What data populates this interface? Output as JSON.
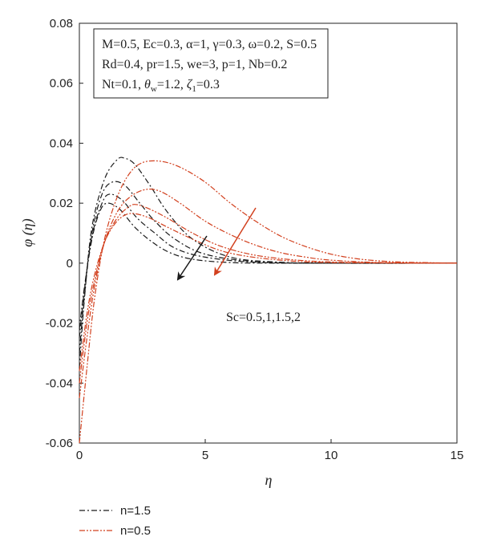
{
  "chart_data": {
    "type": "line",
    "xlabel": "η",
    "ylabel": "φ (η)",
    "xlim": [
      0,
      15
    ],
    "ylim": [
      -0.06,
      0.08
    ],
    "xticks": [
      "0",
      "5",
      "10",
      "15"
    ],
    "yticks": [
      "-0.06",
      "-0.04",
      "-0.02",
      "0",
      "0.02",
      "0.04",
      "0.06",
      "0.08"
    ],
    "grid": false,
    "legend_position": "below-left",
    "colors": {
      "black": "#1a1a1a",
      "red": "#d2401e",
      "frame": "#222222"
    },
    "parameters": [
      "M=0.5, Ec=0.3, α=1, γ=0.3, ω=0.2, S=0.5",
      "Rd=0.4, pr=1.5, we=3, p=1, Nb=0.2",
      "Nt=0.1, θ_w=1.2, ζ_1=0.3"
    ],
    "annotation": "Sc=0.5,1,1.5,2",
    "series": [
      {
        "name": "n=1.5",
        "dash": "dashdot",
        "color": "#1a1a1a",
        "curves": [
          {
            "Sc": 0.5,
            "x": [
              0,
              0.2,
              0.5,
              1.0,
              1.5,
              1.8,
              2.2,
              2.8,
              3.5,
              4.5,
              6.0,
              8.0,
              10.0,
              15.0
            ],
            "y": [
              -0.035,
              -0.012,
              0.012,
              0.028,
              0.0345,
              0.035,
              0.033,
              0.026,
              0.017,
              0.008,
              0.002,
              0.0003,
              0.0,
              0.0
            ]
          },
          {
            "Sc": 1,
            "x": [
              0,
              0.2,
              0.5,
              0.9,
              1.3,
              1.8,
              2.4,
              3.0,
              3.8,
              5.0,
              7.0,
              10.0,
              15.0
            ],
            "y": [
              -0.03,
              -0.011,
              0.01,
              0.023,
              0.027,
              0.026,
              0.02,
              0.014,
              0.008,
              0.003,
              0.0005,
              0.0,
              0.0
            ]
          },
          {
            "Sc": 1.5,
            "x": [
              0,
              0.2,
              0.5,
              0.9,
              1.2,
              1.7,
              2.3,
              3.0,
              3.8,
              5.0,
              7.0,
              10.0,
              15.0
            ],
            "y": [
              -0.025,
              -0.009,
              0.009,
              0.02,
              0.023,
              0.021,
              0.015,
              0.01,
              0.005,
              0.002,
              0.0003,
              0.0,
              0.0
            ]
          },
          {
            "Sc": 2,
            "x": [
              0,
              0.2,
              0.5,
              0.8,
              1.1,
              1.6,
              2.2,
              2.9,
              3.6,
              4.5,
              6.0,
              8.0,
              15.0
            ],
            "y": [
              -0.022,
              -0.008,
              0.008,
              0.017,
              0.02,
              0.018,
              0.012,
              0.007,
              0.0035,
              0.0013,
              0.0002,
              0.0,
              0.0
            ]
          }
        ]
      },
      {
        "name": "n=0.5",
        "dash": "dashdotdot",
        "color": "#d2401e",
        "curves": [
          {
            "Sc": 0.5,
            "x": [
              0,
              0.3,
              0.6,
              1.0,
              1.5,
              2.0,
              2.5,
              3.2,
              4.0,
              5.0,
              6.0,
              7.0,
              8.0,
              9.0,
              10.0,
              11.0,
              12.0,
              13.0,
              15.0
            ],
            "y": [
              -0.06,
              -0.035,
              -0.012,
              0.008,
              0.022,
              0.03,
              0.0335,
              0.034,
              0.032,
              0.027,
              0.02,
              0.014,
              0.009,
              0.0055,
              0.003,
              0.0015,
              0.0007,
              0.0003,
              0.0
            ]
          },
          {
            "Sc": 1,
            "x": [
              0,
              0.3,
              0.6,
              1.0,
              1.5,
              2.0,
              2.6,
              3.2,
              4.0,
              5.0,
              6.0,
              7.0,
              8.0,
              9.0,
              10.0,
              12.0,
              15.0
            ],
            "y": [
              -0.045,
              -0.025,
              -0.008,
              0.007,
              0.017,
              0.022,
              0.0245,
              0.024,
              0.02,
              0.014,
              0.0095,
              0.006,
              0.0035,
              0.002,
              0.001,
              0.0002,
              0.0
            ]
          },
          {
            "Sc": 1.5,
            "x": [
              0,
              0.3,
              0.6,
              1.0,
              1.5,
              2.0,
              2.3,
              2.8,
              3.5,
              4.5,
              5.5,
              6.5,
              7.5,
              9.0,
              11.0,
              15.0
            ],
            "y": [
              -0.04,
              -0.02,
              -0.006,
              0.007,
              0.015,
              0.019,
              0.0195,
              0.018,
              0.015,
              0.01,
              0.006,
              0.0035,
              0.002,
              0.0008,
              0.0002,
              0.0
            ]
          },
          {
            "Sc": 2,
            "x": [
              0,
              0.3,
              0.6,
              1.0,
              1.4,
              1.8,
              2.2,
              2.8,
              3.5,
              4.5,
              5.5,
              6.5,
              8.0,
              10.0,
              15.0
            ],
            "y": [
              -0.036,
              -0.017,
              -0.004,
              0.007,
              0.013,
              0.016,
              0.0165,
              0.015,
              0.012,
              0.008,
              0.0045,
              0.0025,
              0.001,
              0.0002,
              0.0
            ]
          }
        ]
      }
    ]
  }
}
